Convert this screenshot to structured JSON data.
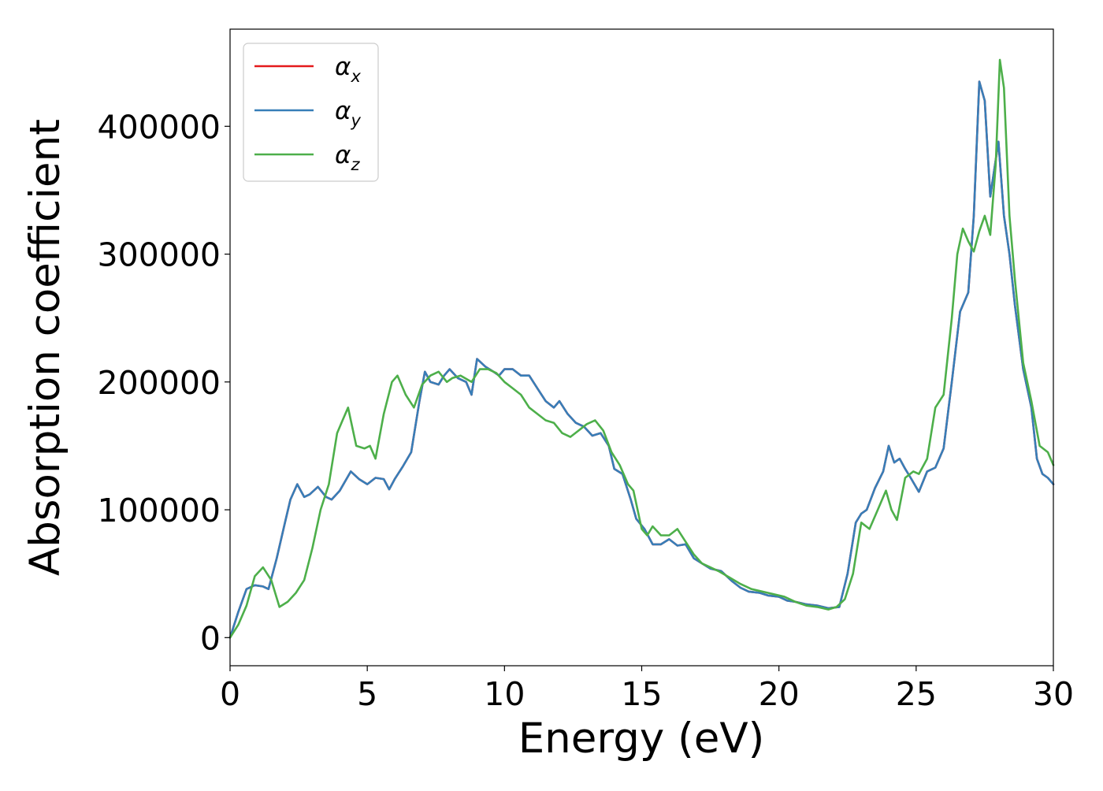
{
  "chart_data": {
    "type": "line",
    "title": "",
    "xlabel": "Energy (eV)",
    "ylabel": "Absorption coefficient",
    "xlim": [
      0,
      30
    ],
    "ylim": [
      -22000,
      476000
    ],
    "xticks": [
      0,
      5,
      10,
      15,
      20,
      25,
      30
    ],
    "xtick_labels": [
      "0",
      "5",
      "10",
      "15",
      "20",
      "25",
      "30"
    ],
    "yticks": [
      0,
      100000,
      200000,
      300000,
      400000
    ],
    "ytick_labels": [
      "0",
      "100000",
      "200000",
      "300000",
      "400000"
    ],
    "grid": false,
    "legend_position": "upper-left",
    "series": [
      {
        "name": "αx",
        "legend_base": "α",
        "legend_sub": "x",
        "color": "#e41a1c",
        "x": [
          0,
          0.3,
          0.6,
          0.9,
          1.2,
          1.4,
          1.7,
          2.0,
          2.2,
          2.45,
          2.7,
          2.9,
          3.2,
          3.5,
          3.7,
          4.0,
          4.4,
          4.7,
          5.0,
          5.3,
          5.6,
          5.8,
          6.0,
          6.3,
          6.6,
          6.9,
          7.1,
          7.3,
          7.6,
          7.8,
          8.0,
          8.3,
          8.6,
          8.8,
          9.0,
          9.3,
          9.6,
          9.8,
          10.0,
          10.3,
          10.6,
          10.9,
          11.2,
          11.5,
          11.8,
          12.0,
          12.3,
          12.6,
          12.9,
          13.2,
          13.5,
          13.8,
          14.0,
          14.3,
          14.6,
          14.8,
          15.1,
          15.4,
          15.7,
          16.0,
          16.3,
          16.6,
          16.9,
          17.2,
          17.5,
          17.9,
          18.3,
          18.6,
          18.9,
          19.3,
          19.6,
          20.0,
          20.3,
          20.6,
          21.0,
          21.4,
          21.8,
          22.2,
          22.5,
          22.8,
          23.0,
          23.2,
          23.5,
          23.8,
          24.0,
          24.2,
          24.4,
          24.6,
          24.8,
          25.1,
          25.4,
          25.7,
          26.0,
          26.3,
          26.6,
          26.9,
          27.1,
          27.3,
          27.5,
          27.7,
          28.0,
          28.2,
          28.4,
          28.6,
          28.9,
          29.2,
          29.4,
          29.6,
          29.8,
          30.0
        ],
        "y": [
          0,
          20000,
          38000,
          41000,
          40000,
          38000,
          62000,
          90000,
          108000,
          120000,
          110000,
          112000,
          118000,
          110000,
          108000,
          115000,
          130000,
          124000,
          120000,
          125000,
          124000,
          116000,
          124000,
          134000,
          145000,
          185000,
          208000,
          200000,
          198000,
          205000,
          210000,
          203000,
          200000,
          190000,
          218000,
          212000,
          208000,
          205000,
          210000,
          210000,
          205000,
          205000,
          195000,
          185000,
          180000,
          185000,
          175000,
          168000,
          165000,
          158000,
          160000,
          150000,
          132000,
          128000,
          108000,
          93000,
          85000,
          73000,
          73000,
          77000,
          72000,
          73000,
          62000,
          58000,
          54000,
          52000,
          44000,
          39000,
          36000,
          35000,
          33000,
          32000,
          29000,
          28000,
          26000,
          25000,
          23000,
          24000,
          50000,
          90000,
          97000,
          100000,
          117000,
          130000,
          150000,
          137000,
          140000,
          132000,
          125000,
          114000,
          130000,
          133000,
          148000,
          200000,
          255000,
          270000,
          330000,
          435000,
          420000,
          345000,
          388000,
          330000,
          300000,
          260000,
          210000,
          180000,
          140000,
          128000,
          125000,
          120000
        ]
      },
      {
        "name": "αy",
        "legend_base": "α",
        "legend_sub": "y",
        "color": "#377eb8",
        "x": [
          0,
          0.3,
          0.6,
          0.9,
          1.2,
          1.4,
          1.7,
          2.0,
          2.2,
          2.45,
          2.7,
          2.9,
          3.2,
          3.5,
          3.7,
          4.0,
          4.4,
          4.7,
          5.0,
          5.3,
          5.6,
          5.8,
          6.0,
          6.3,
          6.6,
          6.9,
          7.1,
          7.3,
          7.6,
          7.8,
          8.0,
          8.3,
          8.6,
          8.8,
          9.0,
          9.3,
          9.6,
          9.8,
          10.0,
          10.3,
          10.6,
          10.9,
          11.2,
          11.5,
          11.8,
          12.0,
          12.3,
          12.6,
          12.9,
          13.2,
          13.5,
          13.8,
          14.0,
          14.3,
          14.6,
          14.8,
          15.1,
          15.4,
          15.7,
          16.0,
          16.3,
          16.6,
          16.9,
          17.2,
          17.5,
          17.9,
          18.3,
          18.6,
          18.9,
          19.3,
          19.6,
          20.0,
          20.3,
          20.6,
          21.0,
          21.4,
          21.8,
          22.2,
          22.5,
          22.8,
          23.0,
          23.2,
          23.5,
          23.8,
          24.0,
          24.2,
          24.4,
          24.6,
          24.8,
          25.1,
          25.4,
          25.7,
          26.0,
          26.3,
          26.6,
          26.9,
          27.1,
          27.3,
          27.5,
          27.7,
          28.0,
          28.2,
          28.4,
          28.6,
          28.9,
          29.2,
          29.4,
          29.6,
          29.8,
          30.0
        ],
        "y": [
          0,
          20000,
          38000,
          41000,
          40000,
          38000,
          62000,
          90000,
          108000,
          120000,
          110000,
          112000,
          118000,
          110000,
          108000,
          115000,
          130000,
          124000,
          120000,
          125000,
          124000,
          116000,
          124000,
          134000,
          145000,
          185000,
          208000,
          200000,
          198000,
          205000,
          210000,
          203000,
          200000,
          190000,
          218000,
          212000,
          208000,
          205000,
          210000,
          210000,
          205000,
          205000,
          195000,
          185000,
          180000,
          185000,
          175000,
          168000,
          165000,
          158000,
          160000,
          150000,
          132000,
          128000,
          108000,
          93000,
          85000,
          73000,
          73000,
          77000,
          72000,
          73000,
          62000,
          58000,
          54000,
          52000,
          44000,
          39000,
          36000,
          35000,
          33000,
          32000,
          29000,
          28000,
          26000,
          25000,
          23000,
          24000,
          50000,
          90000,
          97000,
          100000,
          117000,
          130000,
          150000,
          137000,
          140000,
          132000,
          125000,
          114000,
          130000,
          133000,
          148000,
          200000,
          255000,
          270000,
          330000,
          435000,
          420000,
          345000,
          388000,
          330000,
          300000,
          260000,
          210000,
          180000,
          140000,
          128000,
          125000,
          120000
        ]
      },
      {
        "name": "αz",
        "legend_base": "α",
        "legend_sub": "z",
        "color": "#4daf4a",
        "x": [
          0,
          0.3,
          0.6,
          0.9,
          1.2,
          1.5,
          1.8,
          2.1,
          2.4,
          2.7,
          3.0,
          3.3,
          3.6,
          3.9,
          4.1,
          4.3,
          4.6,
          4.9,
          5.1,
          5.3,
          5.6,
          5.9,
          6.1,
          6.4,
          6.7,
          7.0,
          7.3,
          7.6,
          7.9,
          8.1,
          8.4,
          8.8,
          9.1,
          9.4,
          9.7,
          10.0,
          10.3,
          10.6,
          10.9,
          11.2,
          11.5,
          11.8,
          12.1,
          12.4,
          12.7,
          13.0,
          13.3,
          13.6,
          13.9,
          14.2,
          14.5,
          14.7,
          15.0,
          15.2,
          15.4,
          15.7,
          16.0,
          16.3,
          16.6,
          16.9,
          17.2,
          17.5,
          17.8,
          18.2,
          18.6,
          19.0,
          19.4,
          19.8,
          20.2,
          20.6,
          21.0,
          21.4,
          21.8,
          22.1,
          22.4,
          22.7,
          23.0,
          23.3,
          23.6,
          23.9,
          24.1,
          24.3,
          24.6,
          24.9,
          25.1,
          25.4,
          25.7,
          26.0,
          26.3,
          26.5,
          26.7,
          26.9,
          27.1,
          27.3,
          27.5,
          27.7,
          27.9,
          28.05,
          28.2,
          28.4,
          28.6,
          28.9,
          29.2,
          29.5,
          29.8,
          30.0
        ],
        "y": [
          0,
          10000,
          25000,
          48000,
          55000,
          45000,
          24000,
          28000,
          35000,
          45000,
          70000,
          100000,
          120000,
          160000,
          170000,
          180000,
          150000,
          148000,
          150000,
          140000,
          175000,
          200000,
          205000,
          190000,
          180000,
          198000,
          205000,
          208000,
          200000,
          203000,
          205000,
          200000,
          210000,
          210000,
          207000,
          200000,
          195000,
          190000,
          180000,
          175000,
          170000,
          168000,
          160000,
          157000,
          162000,
          167000,
          170000,
          162000,
          145000,
          135000,
          120000,
          115000,
          85000,
          80000,
          87000,
          80000,
          80000,
          85000,
          75000,
          65000,
          58000,
          55000,
          52000,
          47000,
          42000,
          38000,
          36000,
          34000,
          32000,
          28000,
          25000,
          24000,
          22000,
          24000,
          30000,
          50000,
          90000,
          85000,
          100000,
          115000,
          100000,
          92000,
          125000,
          130000,
          128000,
          140000,
          180000,
          190000,
          250000,
          300000,
          320000,
          310000,
          302000,
          318000,
          330000,
          315000,
          370000,
          452000,
          430000,
          330000,
          280000,
          215000,
          185000,
          150000,
          145000,
          135000
        ]
      }
    ]
  }
}
